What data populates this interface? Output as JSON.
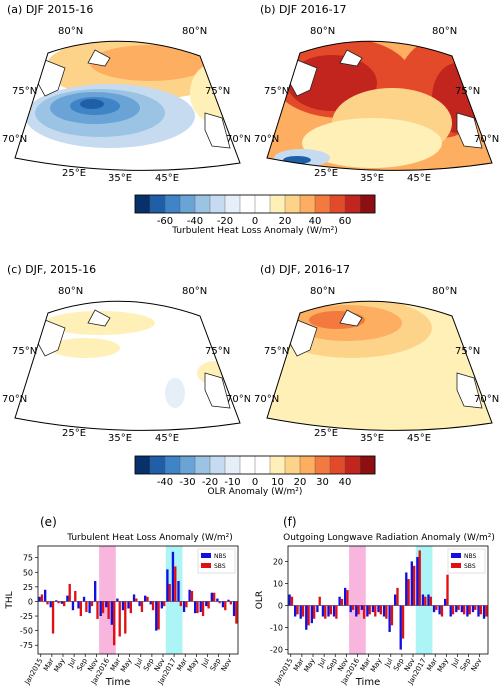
{
  "maps": {
    "a": {
      "title": "(a) DJF 2015-16"
    },
    "b": {
      "title": "(b) DJF 2016-17"
    },
    "c": {
      "title": "(c) DJF, 2015-16"
    },
    "d": {
      "title": "(d) DJF, 2016-17"
    },
    "lat_labels": [
      "80°N",
      "75°N",
      "70°N"
    ],
    "lon_labels": [
      "25°E",
      "35°E",
      "45°E"
    ]
  },
  "colorbar_thl": {
    "ticks": [
      "-60",
      "-40",
      "-20",
      "0",
      "20",
      "40",
      "60"
    ],
    "label": "Turbulent Heat Loss Anomaly (W/m²)",
    "colors": [
      "#08306b",
      "#1f5fa8",
      "#3f84c6",
      "#6aa4d6",
      "#9bc4e4",
      "#c6dbef",
      "#e6eff8",
      "#ffffff",
      "#ffffff",
      "#fff0b8",
      "#fdd38a",
      "#fdae61",
      "#f4793e",
      "#e34a2a",
      "#c2251d",
      "#8e0f12"
    ]
  },
  "colorbar_olr": {
    "ticks": [
      "-40",
      "-30",
      "-20",
      "-10",
      "0",
      "10",
      "20",
      "30",
      "40"
    ],
    "label": "OLR Anomaly (W/m²)",
    "colors": [
      "#08306b",
      "#1f5fa8",
      "#3f84c6",
      "#6aa4d6",
      "#9bc4e4",
      "#c6dbef",
      "#e6eff8",
      "#ffffff",
      "#ffffff",
      "#fff0b8",
      "#fdd38a",
      "#fdae61",
      "#f4793e",
      "#e34a2a",
      "#c2251d",
      "#8e0f12"
    ]
  },
  "chart_data": [
    {
      "type": "bar",
      "letter": "(e)",
      "title": "Turbulent Heat Loss Anomaly (W/m²)",
      "ylabel": "THL",
      "xlabel": "Time",
      "ylim": [
        -90,
        95
      ],
      "yticks": [
        -75,
        -50,
        -25,
        0,
        25,
        50,
        75
      ],
      "xticklabels": [
        "Jan2015",
        "Mar",
        "May",
        "Jul",
        "Sep",
        "Nov",
        "Jan2016",
        "Mar",
        "May",
        "Jul",
        "Sep",
        "Nov",
        "Jan2017",
        "Mar",
        "May",
        "Jul",
        "Sep",
        "Nov"
      ],
      "highlights": [
        {
          "months": [
            11,
            13
          ],
          "color": "#f7a8d8"
        },
        {
          "months": [
            23,
            25
          ],
          "color": "#9ff2f5"
        }
      ],
      "series": [
        {
          "name": "NBS",
          "color": "#1010e0",
          "values": [
            8,
            20,
            -10,
            2,
            -4,
            10,
            -15,
            -12,
            8,
            -20,
            35,
            -25,
            -10,
            -40,
            5,
            -15,
            -12,
            12,
            -8,
            10,
            -5,
            -50,
            -12,
            55,
            85,
            35,
            -18,
            20,
            -20,
            -18,
            -8,
            15,
            5,
            -10,
            3,
            -25
          ]
        },
        {
          "name": "SBS",
          "color": "#e01010",
          "values": [
            12,
            -5,
            -55,
            -3,
            -8,
            30,
            18,
            -25,
            -18,
            -8,
            -30,
            -20,
            -30,
            -75,
            -60,
            -55,
            -20,
            5,
            -18,
            8,
            -15,
            -48,
            -8,
            30,
            60,
            -8,
            -10,
            18,
            -20,
            -25,
            -12,
            15,
            -3,
            -15,
            -5,
            -38
          ]
        }
      ]
    },
    {
      "type": "bar",
      "letter": "(f)",
      "title": "Outgoing Longwave Radiation Anomaly (W/m²)",
      "ylabel": "OLR",
      "xlabel": "Time",
      "ylim": [
        -22,
        27
      ],
      "yticks": [
        -20,
        -10,
        0,
        10,
        20
      ],
      "xticklabels": [
        "Jan2015",
        "Mar",
        "May",
        "Jul",
        "Sep",
        "Nov",
        "Jan2016",
        "Mar",
        "May",
        "Jul",
        "Sep",
        "Nov",
        "Jan2017",
        "Mar",
        "May",
        "Jul",
        "Sep",
        "Nov"
      ],
      "highlights": [
        {
          "months": [
            11,
            13
          ],
          "color": "#f7a8d8"
        },
        {
          "months": [
            23,
            25
          ],
          "color": "#9ff2f5"
        }
      ],
      "series": [
        {
          "name": "NBS",
          "color": "#1010e0",
          "values": [
            5,
            -5,
            -6,
            -11,
            -8,
            -3,
            -5,
            -5,
            -5,
            4,
            8,
            -3,
            -5,
            -2,
            -5,
            -3,
            -3,
            -5,
            -12,
            5,
            -20,
            15,
            20,
            22,
            5,
            5,
            -3,
            -4,
            3,
            -5,
            -3,
            -3,
            -5,
            -3,
            -5,
            -6
          ]
        },
        {
          "name": "SBS",
          "color": "#e01010",
          "values": [
            4,
            -4,
            -5,
            -9,
            -6,
            4,
            -6,
            -4,
            -6,
            3,
            7,
            -2,
            -4,
            -6,
            -4,
            -5,
            -4,
            -6,
            -9,
            8,
            -15,
            12,
            18,
            25,
            4,
            4,
            -2,
            -5,
            14,
            -4,
            -2,
            -4,
            -4,
            -2,
            -4,
            -5
          ]
        }
      ]
    }
  ]
}
